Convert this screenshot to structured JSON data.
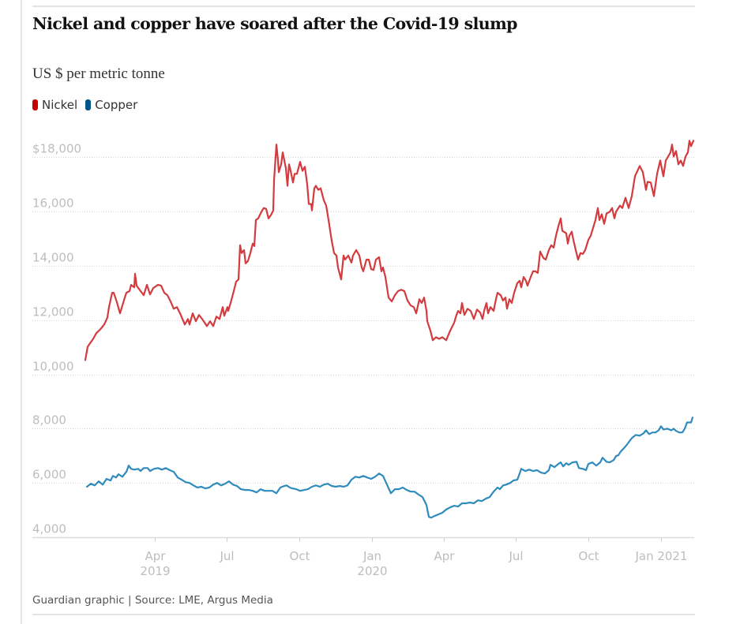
{
  "header": {
    "title": "Nickel and copper have soared after the Covid-19 slump",
    "subtitle": "US $ per metric tonne"
  },
  "legend": [
    {
      "label": "Nickel",
      "color": "#c70000"
    },
    {
      "label": "Copper",
      "color": "#005689"
    }
  ],
  "footer": {
    "source": "Guardian graphic | Source: LME, Argus Media"
  },
  "chart_data": {
    "type": "line",
    "title": "Nickel and copper have soared after the Covid-19 slump",
    "ylabel": "US $ per metric tonne",
    "xlabel": "",
    "x_unit": "days since 2019-01-01",
    "xlim": [
      0,
      775
    ],
    "ylim": [
      4000,
      18600
    ],
    "grid": true,
    "legend_position": "top-left",
    "y_ticks": [
      {
        "value": 4000,
        "label": "4,000"
      },
      {
        "value": 6000,
        "label": "6,000"
      },
      {
        "value": 8000,
        "label": "8,000"
      },
      {
        "value": 10000,
        "label": "10,000"
      },
      {
        "value": 12000,
        "label": "12,000"
      },
      {
        "value": 14000,
        "label": "14,000"
      },
      {
        "value": 16000,
        "label": "16,000"
      },
      {
        "value": 18000,
        "label": "$18,000"
      }
    ],
    "x_ticks": [
      {
        "day": 90,
        "label": "Apr",
        "sublabel": "2019"
      },
      {
        "day": 181,
        "label": "Jul",
        "sublabel": ""
      },
      {
        "day": 273,
        "label": "Oct",
        "sublabel": ""
      },
      {
        "day": 365,
        "label": "Jan",
        "sublabel": "2020"
      },
      {
        "day": 456,
        "label": "Apr",
        "sublabel": ""
      },
      {
        "day": 547,
        "label": "Jul",
        "sublabel": ""
      },
      {
        "day": 639,
        "label": "Oct",
        "sublabel": ""
      },
      {
        "day": 731,
        "label": "Jan 2021",
        "sublabel": ""
      }
    ],
    "series": [
      {
        "name": "Nickel",
        "color": "#d33b3f",
        "x": [
          2,
          5,
          12,
          16,
          21,
          26,
          30,
          32,
          36,
          38,
          42,
          46,
          52,
          54,
          58,
          60,
          64,
          65,
          67,
          72,
          76,
          80,
          84,
          88,
          91,
          94,
          98,
          102,
          106,
          110,
          114,
          118,
          122,
          128,
          132,
          134,
          138,
          142,
          146,
          150,
          156,
          160,
          164,
          168,
          172,
          176,
          178,
          182,
          183,
          186,
          190,
          193,
          196,
          198,
          200,
          203,
          205,
          208,
          211,
          214,
          216,
          218,
          221,
          224,
          226,
          228,
          231,
          234,
          237,
          240,
          241,
          243,
          244,
          246,
          247,
          250,
          252,
          256,
          258,
          260,
          262,
          265,
          267,
          270,
          274,
          277,
          280,
          283,
          285,
          288,
          289,
          292,
          294,
          297,
          300,
          304,
          307,
          310,
          314,
          317,
          320,
          322,
          326,
          329,
          331,
          335,
          339,
          341,
          345,
          349,
          352,
          354,
          358,
          361,
          364,
          367,
          370,
          374,
          377,
          379,
          382,
          386,
          390,
          394,
          398,
          402,
          406,
          410,
          414,
          418,
          421,
          425,
          428,
          431,
          434,
          435,
          439,
          442,
          446,
          450,
          454,
          459,
          464,
          469,
          472,
          474,
          477,
          479,
          482,
          486,
          490,
          494,
          498,
          502,
          505,
          507,
          510,
          512,
          515,
          519,
          522,
          524,
          528,
          531,
          534,
          536,
          539,
          542,
          545,
          549,
          552,
          554,
          557,
          560,
          562,
          566,
          569,
          572,
          575,
          578,
          582,
          585,
          589,
          592,
          595,
          598,
          601,
          604,
          606,
          611,
          613,
          615,
          618,
          620,
          623,
          626,
          629,
          632,
          635,
          639,
          642,
          645,
          648,
          651,
          653,
          656,
          659,
          662,
          666,
          669,
          672,
          674,
          679,
          682,
          686,
          690,
          694,
          698,
          704,
          708,
          712,
          714,
          718,
          722,
          726,
          730,
          734,
          737,
          740,
          743,
          745,
          747,
          750,
          753,
          756,
          759,
          762,
          765,
          767,
          769,
          772
        ],
        "values": [
          10530,
          11020,
          11310,
          11520,
          11660,
          11840,
          12100,
          12480,
          13010,
          13010,
          12660,
          12250,
          12830,
          13010,
          13070,
          13300,
          13210,
          13710,
          13270,
          13070,
          12920,
          13300,
          12950,
          13180,
          13240,
          13300,
          13270,
          13010,
          12920,
          12690,
          12420,
          12480,
          12250,
          11840,
          12040,
          11840,
          12250,
          11960,
          12190,
          12040,
          11780,
          11960,
          11780,
          12130,
          12040,
          12480,
          12160,
          12480,
          12340,
          12630,
          13070,
          13420,
          13500,
          14760,
          14470,
          14580,
          14090,
          14180,
          14470,
          14820,
          14730,
          15690,
          15750,
          15930,
          16040,
          16130,
          16100,
          15750,
          15870,
          16040,
          17150,
          18030,
          18470,
          17880,
          17450,
          17740,
          18180,
          17590,
          16950,
          17740,
          17500,
          17070,
          17390,
          17390,
          17830,
          17500,
          17650,
          17010,
          16280,
          16280,
          16040,
          16860,
          16950,
          16800,
          16860,
          16420,
          16220,
          15690,
          14930,
          14470,
          14380,
          13940,
          13500,
          14380,
          14230,
          14380,
          14120,
          14380,
          14580,
          14380,
          13940,
          13800,
          14230,
          14230,
          13880,
          13850,
          14230,
          14320,
          13800,
          13940,
          13590,
          12830,
          12690,
          12920,
          13070,
          13120,
          13070,
          12720,
          12540,
          12480,
          12250,
          12770,
          12630,
          12830,
          12340,
          11960,
          11610,
          11260,
          11370,
          11310,
          11370,
          11260,
          11610,
          11900,
          12190,
          12340,
          12250,
          12630,
          12190,
          12420,
          12340,
          12040,
          12390,
          12280,
          12040,
          12340,
          12630,
          12250,
          12480,
          12340,
          12770,
          13010,
          12920,
          12720,
          12830,
          12420,
          12770,
          12630,
          13010,
          13360,
          13450,
          13210,
          13590,
          13450,
          13270,
          13590,
          13800,
          13800,
          13740,
          14530,
          14290,
          14230,
          14580,
          14760,
          14670,
          15110,
          15460,
          15750,
          15290,
          15200,
          14820,
          15110,
          15260,
          14960,
          14580,
          14230,
          14470,
          14440,
          14580,
          14960,
          15110,
          15400,
          15690,
          16130,
          15690,
          15900,
          15550,
          15930,
          15990,
          16130,
          15750,
          15990,
          16220,
          16130,
          16510,
          16130,
          16570,
          17300,
          17680,
          17450,
          16800,
          17100,
          17070,
          16570,
          17390,
          17880,
          17300,
          17880,
          18030,
          18180,
          18470,
          18030,
          18230,
          17740,
          17880,
          17680,
          18030,
          18180,
          18610,
          18410,
          18610
        ]
      },
      {
        "name": "Copper",
        "color": "#2f8bbd",
        "x": [
          4,
          9,
          14,
          19,
          24,
          29,
          34,
          37,
          41,
          44,
          49,
          54,
          57,
          60,
          64,
          69,
          72,
          76,
          81,
          84,
          89,
          94,
          99,
          104,
          109,
          114,
          119,
          124,
          129,
          134,
          139,
          144,
          149,
          154,
          159,
          164,
          169,
          174,
          179,
          184,
          189,
          194,
          199,
          204,
          209,
          214,
          219,
          224,
          229,
          234,
          239,
          244,
          249,
          254,
          257,
          261,
          264,
          269,
          274,
          279,
          284,
          289,
          294,
          299,
          304,
          309,
          314,
          319,
          324,
          329,
          334,
          339,
          344,
          349,
          354,
          359,
          364,
          369,
          374,
          379,
          384,
          389,
          394,
          399,
          404,
          409,
          414,
          419,
          424,
          429,
          434,
          437,
          440,
          444,
          449,
          454,
          459,
          464,
          469,
          474,
          479,
          484,
          489,
          494,
          499,
          504,
          509,
          514,
          519,
          524,
          527,
          531,
          535,
          540,
          544,
          549,
          552,
          554,
          559,
          564,
          569,
          574,
          579,
          584,
          589,
          591,
          596,
          601,
          604,
          607,
          611,
          614,
          619,
          624,
          627,
          632,
          636,
          639,
          644,
          649,
          654,
          657,
          662,
          666,
          671,
          674,
          677,
          680,
          684,
          688,
          694,
          699,
          704,
          709,
          712,
          716,
          720,
          724,
          728,
          731,
          734,
          739,
          744,
          747,
          750,
          754,
          758,
          761,
          764,
          769,
          771
        ],
        "values": [
          5860,
          5970,
          5910,
          6060,
          5940,
          6150,
          6090,
          6260,
          6200,
          6320,
          6230,
          6410,
          6640,
          6520,
          6490,
          6520,
          6440,
          6550,
          6550,
          6440,
          6520,
          6550,
          6490,
          6550,
          6470,
          6410,
          6200,
          6120,
          6030,
          6000,
          5910,
          5830,
          5860,
          5800,
          5830,
          5940,
          6000,
          5910,
          5970,
          6060,
          5940,
          5890,
          5770,
          5740,
          5740,
          5710,
          5650,
          5770,
          5710,
          5710,
          5710,
          5620,
          5830,
          5890,
          5910,
          5830,
          5800,
          5770,
          5710,
          5740,
          5770,
          5860,
          5910,
          5860,
          5940,
          5970,
          5890,
          5860,
          5890,
          5860,
          5910,
          6120,
          6230,
          6200,
          6260,
          6200,
          6150,
          6230,
          6350,
          6260,
          5940,
          5620,
          5770,
          5770,
          5830,
          5740,
          5680,
          5680,
          5570,
          5480,
          5190,
          4750,
          4720,
          4780,
          4840,
          4900,
          5020,
          5100,
          5160,
          5130,
          5250,
          5250,
          5280,
          5250,
          5360,
          5330,
          5420,
          5480,
          5680,
          5830,
          5770,
          5910,
          5940,
          6000,
          6090,
          6120,
          6350,
          6520,
          6440,
          6490,
          6440,
          6470,
          6380,
          6350,
          6470,
          6670,
          6580,
          6700,
          6760,
          6610,
          6730,
          6670,
          6760,
          6780,
          6550,
          6520,
          6470,
          6700,
          6760,
          6640,
          6760,
          6930,
          6780,
          6760,
          6840,
          6990,
          7020,
          7160,
          7280,
          7420,
          7650,
          7770,
          7740,
          7830,
          7940,
          7800,
          7860,
          7860,
          7940,
          8090,
          7970,
          8000,
          7940,
          8000,
          7920,
          7860,
          7860,
          8000,
          8230,
          8230,
          8410
        ]
      }
    ]
  }
}
